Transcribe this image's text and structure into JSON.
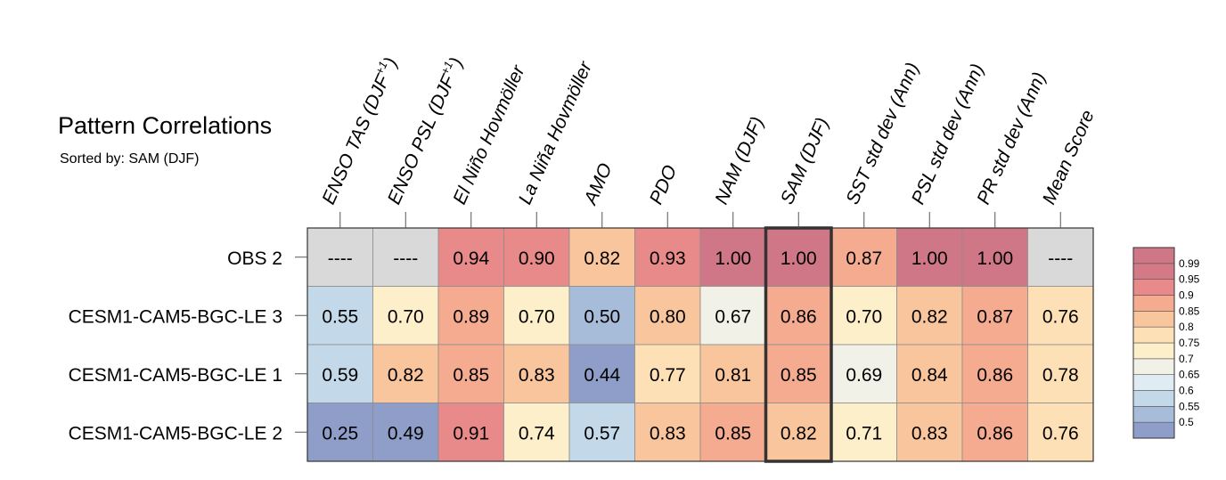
{
  "title": "Pattern Correlations",
  "subtitle": "Sorted by: SAM (DJF)",
  "chart_data": {
    "type": "heatmap",
    "columns": [
      {
        "base": "ENSO TAS (DJF",
        "sup": "+1",
        "tail": ")"
      },
      {
        "base": "ENSO PSL (DJF",
        "sup": "+1",
        "tail": ")"
      },
      {
        "base": "El Niño Hovmöller"
      },
      {
        "base": "La Niña Hovmöller"
      },
      {
        "base": "AMO"
      },
      {
        "base": "PDO"
      },
      {
        "base": "NAM (DJF)"
      },
      {
        "base": "SAM (DJF)"
      },
      {
        "base": "SST std dev (Ann)"
      },
      {
        "base": "PSL std dev (Ann)"
      },
      {
        "base": "PR std dev (Ann)"
      },
      {
        "base": "Mean Score"
      }
    ],
    "rows": [
      "OBS 2",
      "CESM1-CAM5-BGC-LE 3",
      "CESM1-CAM5-BGC-LE 1",
      "CESM1-CAM5-BGC-LE 2"
    ],
    "values": [
      [
        null,
        null,
        0.94,
        0.9,
        0.82,
        0.93,
        1.0,
        1.0,
        0.87,
        1.0,
        1.0,
        null
      ],
      [
        0.55,
        0.7,
        0.89,
        0.7,
        0.5,
        0.8,
        0.67,
        0.86,
        0.7,
        0.82,
        0.87,
        0.76
      ],
      [
        0.59,
        0.82,
        0.85,
        0.83,
        0.44,
        0.77,
        0.81,
        0.85,
        0.69,
        0.84,
        0.86,
        0.78
      ],
      [
        0.25,
        0.49,
        0.91,
        0.74,
        0.57,
        0.83,
        0.85,
        0.82,
        0.71,
        0.83,
        0.86,
        0.76
      ]
    ],
    "missing_label": "----",
    "highlighted_column": "SAM (DJF)",
    "colorbar": {
      "boundaries": [
        0.5,
        0.55,
        0.6,
        0.65,
        0.7,
        0.75,
        0.8,
        0.85,
        0.9,
        0.95,
        0.99
      ],
      "tick_labels": [
        "0.5",
        "0.55",
        "0.6",
        "0.65",
        "0.7",
        "0.75",
        "0.8",
        "0.85",
        "0.9",
        "0.95",
        "0.99"
      ],
      "colors": [
        "#8f9ec8",
        "#a7bcd9",
        "#c3d8e8",
        "#e0ecf4",
        "#f1f1e7",
        "#fdefc9",
        "#fde0b5",
        "#f9c59c",
        "#f5ab90",
        "#e88a89",
        "#d47a87",
        "#cf7787"
      ],
      "missing_color": "#d9d9d9"
    }
  }
}
